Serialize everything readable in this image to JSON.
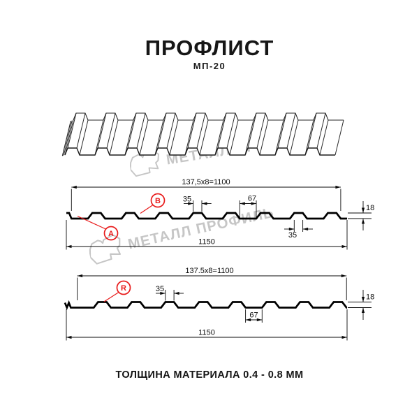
{
  "title": "ПРОФЛИСТ",
  "subtitle": "МП-20",
  "footer_note": "ТОЛЩИНА МАТЕРИАЛА 0.4 - 0.8 ММ",
  "watermark": {
    "brand": "МЕТАЛЛ ПРОФИЛЬ"
  },
  "colors": {
    "accent_red": "#e81b1b",
    "line_black": "#000000",
    "watermark_gray": "#c6c6c6"
  },
  "profile_top": {
    "dim_module_width": "137,5x8=1100",
    "dim_rib_crest_width": "35",
    "dim_valley_width": "67",
    "dim_height": "18",
    "dim_rib_crest_width_lower": "35",
    "dim_overall_width": "1150",
    "side_a_label": "A",
    "side_b_label": "B"
  },
  "profile_bottom": {
    "dim_module_width": "137.5x8=1100",
    "dim_rib_crest_width": "35",
    "dim_valley_width": "67",
    "dim_height": "18",
    "dim_overall_width": "1150",
    "side_r_label": "R"
  }
}
